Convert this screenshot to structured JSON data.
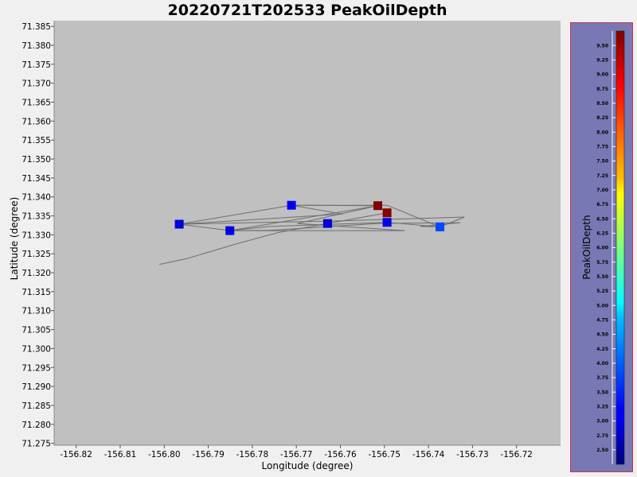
{
  "chart_data": {
    "type": "scatter",
    "title": "20220721T202533 PeakOilDepth",
    "xlabel": "Longitude (degree)",
    "ylabel": "Latitude (degree)",
    "xlim": [
      -156.825,
      -156.71
    ],
    "ylim": [
      71.2745,
      71.3865
    ],
    "x_ticks": [
      "-156.82",
      "-156.81",
      "-156.80",
      "-156.79",
      "-156.78",
      "-156.77",
      "-156.76",
      "-156.75",
      "-156.74",
      "-156.73",
      "-156.72"
    ],
    "x_tick_values": [
      -156.82,
      -156.81,
      -156.8,
      -156.79,
      -156.78,
      -156.77,
      -156.76,
      -156.75,
      -156.74,
      -156.73,
      -156.72
    ],
    "y_ticks": [
      "71.385",
      "71.380",
      "71.375",
      "71.370",
      "71.365",
      "71.360",
      "71.355",
      "71.350",
      "71.345",
      "71.340",
      "71.335",
      "71.330",
      "71.325",
      "71.320",
      "71.315",
      "71.310",
      "71.305",
      "71.300",
      "71.295",
      "71.290",
      "71.285",
      "71.280",
      "71.275"
    ],
    "y_tick_values": [
      71.385,
      71.38,
      71.375,
      71.37,
      71.365,
      71.36,
      71.355,
      71.35,
      71.345,
      71.34,
      71.335,
      71.33,
      71.325,
      71.32,
      71.315,
      71.31,
      71.305,
      71.3,
      71.295,
      71.29,
      71.285,
      71.28,
      71.275
    ],
    "points": [
      {
        "x": -156.7966,
        "y": 71.3328,
        "value": 2.9
      },
      {
        "x": -156.7851,
        "y": 71.3311,
        "value": 3.0
      },
      {
        "x": -156.7711,
        "y": 71.3378,
        "value": 3.1
      },
      {
        "x": -156.7629,
        "y": 71.333,
        "value": 2.9
      },
      {
        "x": -156.7515,
        "y": 71.3377,
        "value": 9.8
      },
      {
        "x": -156.7494,
        "y": 71.3358,
        "value": 9.7
      },
      {
        "x": -156.7494,
        "y": 71.3333,
        "value": 3.0
      },
      {
        "x": -156.7374,
        "y": 71.3321,
        "value": 3.7
      }
    ],
    "track": [
      [
        -156.8011,
        71.3222
      ],
      [
        -156.7949,
        71.3237
      ],
      [
        -156.7834,
        71.3277
      ],
      [
        -156.7741,
        71.3306
      ],
      [
        -156.7629,
        71.333
      ],
      [
        -156.7494,
        71.3358
      ],
      [
        -156.7515,
        71.3377
      ],
      [
        -156.7711,
        71.3378
      ],
      [
        -156.7595,
        71.3355
      ],
      [
        -156.7966,
        71.3328
      ],
      [
        -156.7851,
        71.3311
      ],
      [
        -156.7762,
        71.3322
      ],
      [
        -156.7494,
        71.3333
      ],
      [
        -156.7374,
        71.3321
      ],
      [
        -156.7318,
        71.3347
      ],
      [
        -156.7595,
        71.3337
      ],
      [
        -156.7966,
        71.3328
      ],
      [
        -156.7711,
        71.3378
      ],
      [
        -156.7494,
        71.3378
      ],
      [
        -156.7374,
        71.3321
      ],
      [
        -156.7418,
        71.3322
      ],
      [
        -156.7328,
        71.3332
      ],
      [
        -156.7515,
        71.333
      ],
      [
        -156.776,
        71.3312
      ],
      [
        -156.7851,
        71.3311
      ],
      [
        -156.7515,
        71.3377
      ],
      [
        -156.7698,
        71.333
      ],
      [
        -156.7454,
        71.3311
      ],
      [
        -156.7851,
        71.3311
      ]
    ],
    "colorbar": {
      "label": "PeakOilDepth",
      "min": 2.25,
      "max": 9.75,
      "ticks": [
        "2.50",
        "2.75",
        "3.00",
        "3.25",
        "3.50",
        "3.75",
        "4.00",
        "4.25",
        "4.50",
        "4.75",
        "5.00",
        "5.25",
        "5.50",
        "5.75",
        "6.00",
        "6.25",
        "6.50",
        "6.75",
        "7.00",
        "7.25",
        "7.50",
        "7.75",
        "8.00",
        "8.25",
        "8.50",
        "8.75",
        "9.00",
        "9.25",
        "9.50"
      ],
      "tick_values": [
        2.5,
        2.75,
        3.0,
        3.25,
        3.5,
        3.75,
        4.0,
        4.25,
        4.5,
        4.75,
        5.0,
        5.25,
        5.5,
        5.75,
        6.0,
        6.25,
        6.5,
        6.75,
        7.0,
        7.25,
        7.5,
        7.75,
        8.0,
        8.25,
        8.5,
        8.75,
        9.0,
        9.25,
        9.5
      ],
      "colormap": "jet"
    },
    "grid": false,
    "legend": "none",
    "colors": {
      "plot_background": "#c0c0c0",
      "figure_background": "#f0f0f0",
      "colorbar_panel": "#7878b4",
      "colorbar_border": "#cc3344",
      "track_line": "#6e6e6e"
    }
  }
}
